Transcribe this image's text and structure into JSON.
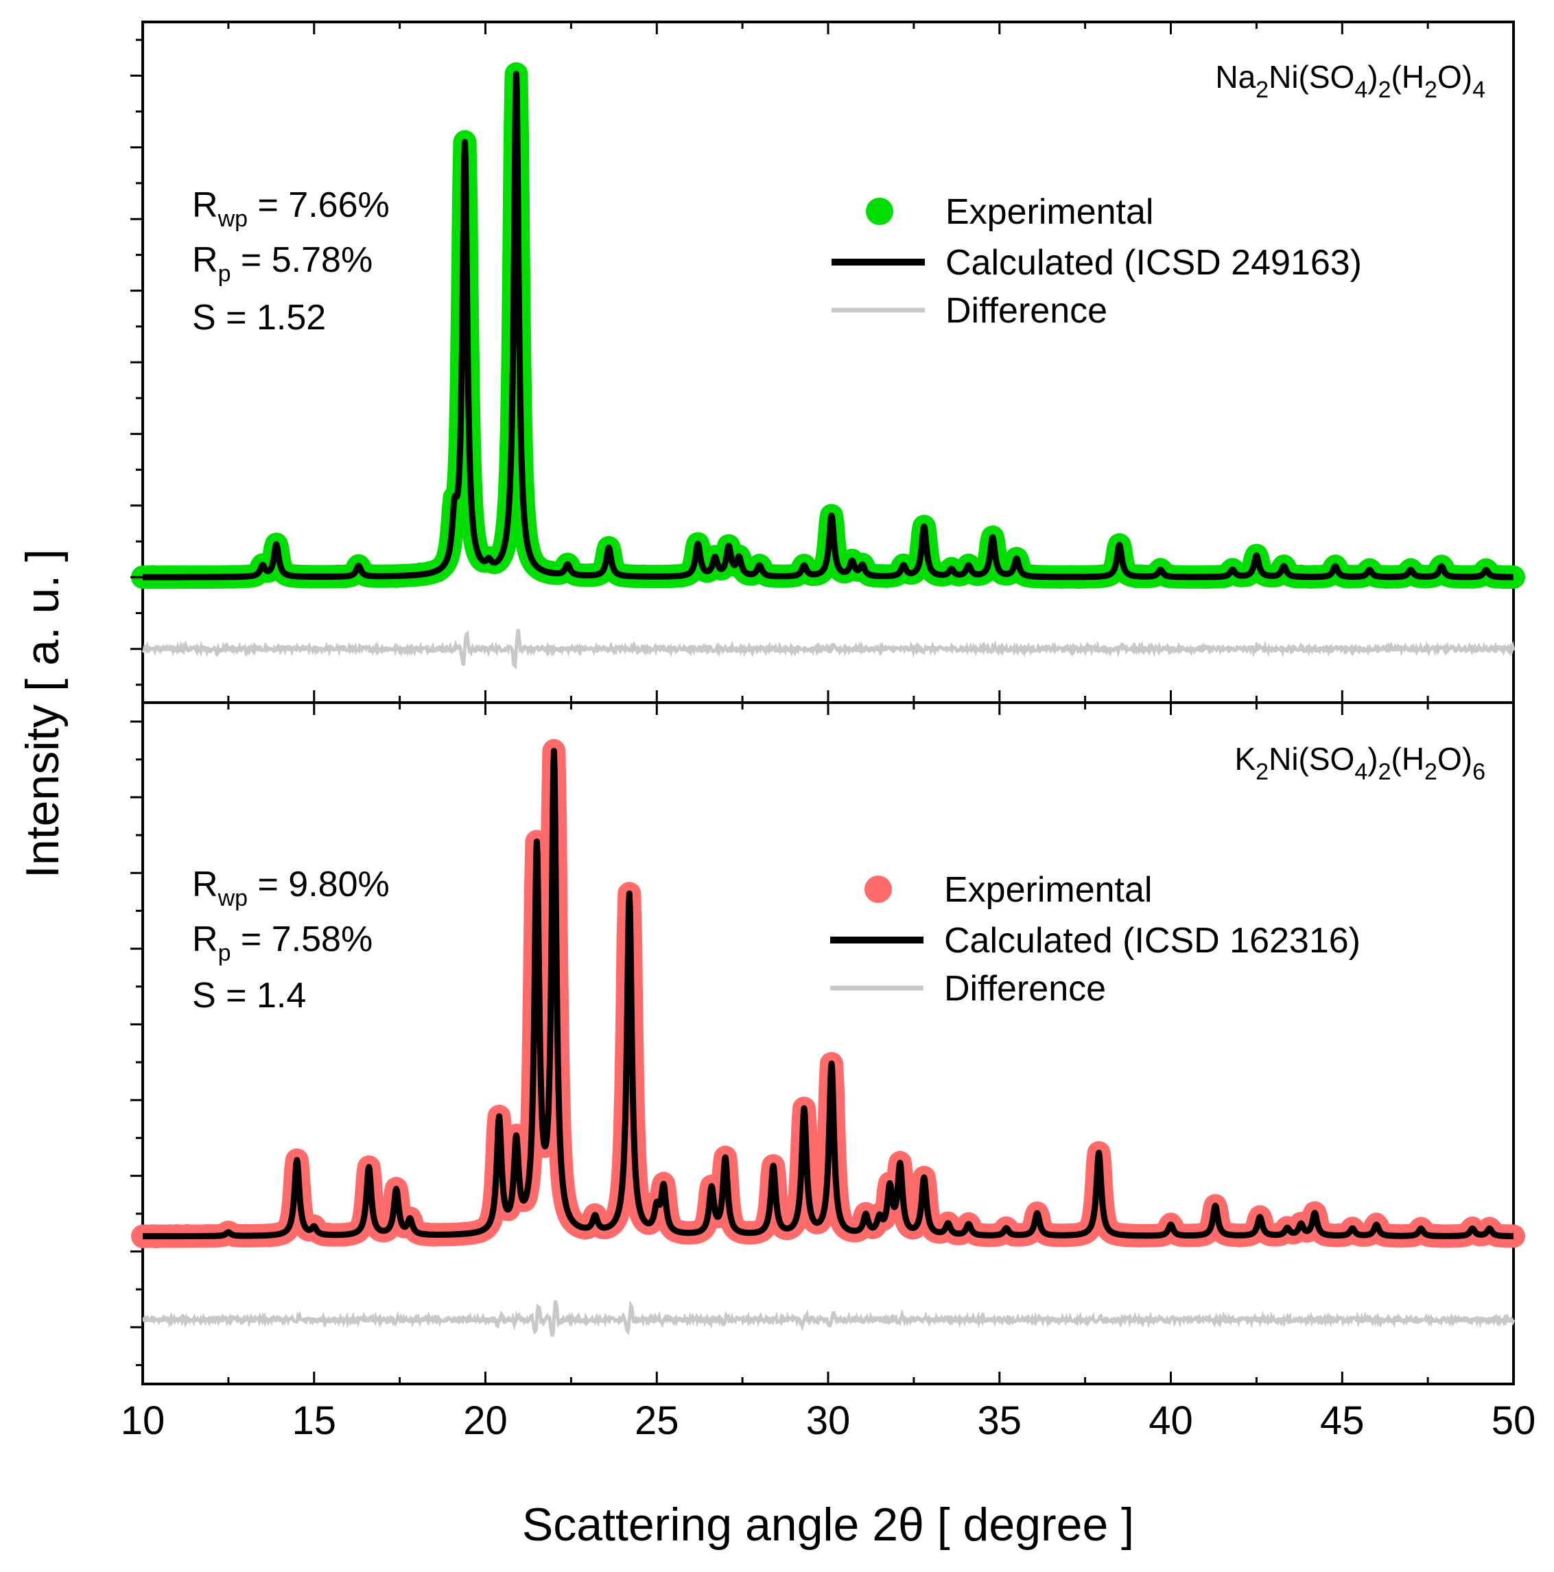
{
  "chart_data": {
    "type": "line",
    "xlabel": "Scattering angle 2θ [ degree ]",
    "ylabel": "Intensity [ a. u. ]",
    "xlim": [
      10,
      50
    ],
    "xticks": [
      "10",
      "15",
      "20",
      "25",
      "30",
      "35",
      "40",
      "45",
      "50"
    ],
    "colors": {
      "experimental_top": "#00dd00",
      "experimental_bottom": "#ff6b6b",
      "calculated": "#000000",
      "difference": "#c8c8c8"
    },
    "panels": [
      {
        "compound": {
          "base": "Na",
          "sub1": "2",
          "mid1": "Ni(SO",
          "sub2": "4",
          "mid2": ")",
          "sub3": "2",
          "mid3": "(H",
          "sub4": "2",
          "mid4": "O)",
          "sub5": "4"
        },
        "stats": {
          "rwp_pre": "R",
          "rwp_sub": "wp",
          "rwp_val": " = 7.66%",
          "rp_pre": "R",
          "rp_sub": "p",
          "rp_val": " =  5.78%",
          "s": "S = 1.52"
        },
        "legend": {
          "experimental": "Experimental",
          "calculated": "Calculated (ICSD 249163)",
          "difference": "Difference"
        },
        "ylim": [
          -0.35,
          1.55
        ],
        "baseline": 0.0,
        "diff_offset": -0.2,
        "peaks": [
          {
            "x": 13.5,
            "h": 0.03
          },
          {
            "x": 13.9,
            "h": 0.09
          },
          {
            "x": 16.3,
            "h": 0.03
          },
          {
            "x": 19.1,
            "h": 0.13
          },
          {
            "x": 19.4,
            "h": 1.2
          },
          {
            "x": 20.1,
            "h": 0.02
          },
          {
            "x": 20.9,
            "h": 1.4
          },
          {
            "x": 22.4,
            "h": 0.03
          },
          {
            "x": 23.6,
            "h": 0.08
          },
          {
            "x": 26.2,
            "h": 0.09
          },
          {
            "x": 26.7,
            "h": 0.05
          },
          {
            "x": 27.1,
            "h": 0.08
          },
          {
            "x": 27.4,
            "h": 0.05
          },
          {
            "x": 28.0,
            "h": 0.03
          },
          {
            "x": 29.3,
            "h": 0.03
          },
          {
            "x": 30.1,
            "h": 0.17
          },
          {
            "x": 30.7,
            "h": 0.04
          },
          {
            "x": 31.0,
            "h": 0.03
          },
          {
            "x": 32.2,
            "h": 0.03
          },
          {
            "x": 32.8,
            "h": 0.14
          },
          {
            "x": 33.6,
            "h": 0.02
          },
          {
            "x": 34.1,
            "h": 0.03
          },
          {
            "x": 34.8,
            "h": 0.11
          },
          {
            "x": 35.5,
            "h": 0.05
          },
          {
            "x": 38.5,
            "h": 0.09
          },
          {
            "x": 39.7,
            "h": 0.02
          },
          {
            "x": 41.8,
            "h": 0.02
          },
          {
            "x": 42.5,
            "h": 0.06
          },
          {
            "x": 43.3,
            "h": 0.03
          },
          {
            "x": 44.8,
            "h": 0.03
          },
          {
            "x": 45.8,
            "h": 0.02
          },
          {
            "x": 47.0,
            "h": 0.02
          },
          {
            "x": 47.9,
            "h": 0.03
          },
          {
            "x": 49.2,
            "h": 0.02
          }
        ]
      },
      {
        "compound": {
          "base": "K",
          "sub1": "2",
          "mid1": "Ni(SO",
          "sub2": "4",
          "mid2": ")",
          "sub3": "2",
          "mid3": "(H",
          "sub4": "2",
          "mid4": "O)",
          "sub5": "6"
        },
        "stats": {
          "rwp_pre": "R",
          "rwp_sub": "wp",
          "rwp_val": " = 9.80%",
          "rp_pre": "R",
          "rp_sub": "p",
          "rp_val": " = 7.58%",
          "s": "S = 1.4"
        },
        "legend": {
          "experimental": "Experimental",
          "calculated": "Calculated (ICSD 162316)",
          "difference": "Difference"
        },
        "ylim": [
          -0.35,
          1.45
        ],
        "baseline": 0.04,
        "diff_offset": -0.18,
        "peaks": [
          {
            "x": 12.5,
            "h": 0.01
          },
          {
            "x": 14.5,
            "h": 0.2
          },
          {
            "x": 15.0,
            "h": 0.02
          },
          {
            "x": 16.6,
            "h": 0.18
          },
          {
            "x": 17.4,
            "h": 0.12
          },
          {
            "x": 17.8,
            "h": 0.04
          },
          {
            "x": 20.4,
            "h": 0.3
          },
          {
            "x": 20.9,
            "h": 0.23
          },
          {
            "x": 21.5,
            "h": 1.0
          },
          {
            "x": 22.0,
            "h": 1.25
          },
          {
            "x": 23.2,
            "h": 0.04
          },
          {
            "x": 24.2,
            "h": 0.9
          },
          {
            "x": 25.0,
            "h": 0.06
          },
          {
            "x": 25.2,
            "h": 0.12
          },
          {
            "x": 26.6,
            "h": 0.12
          },
          {
            "x": 27.0,
            "h": 0.2
          },
          {
            "x": 28.4,
            "h": 0.18
          },
          {
            "x": 29.3,
            "h": 0.33
          },
          {
            "x": 30.1,
            "h": 0.45
          },
          {
            "x": 31.1,
            "h": 0.05
          },
          {
            "x": 31.5,
            "h": 0.04
          },
          {
            "x": 31.8,
            "h": 0.12
          },
          {
            "x": 32.1,
            "h": 0.18
          },
          {
            "x": 32.8,
            "h": 0.15
          },
          {
            "x": 33.5,
            "h": 0.03
          },
          {
            "x": 34.1,
            "h": 0.03
          },
          {
            "x": 35.2,
            "h": 0.02
          },
          {
            "x": 36.1,
            "h": 0.06
          },
          {
            "x": 37.9,
            "h": 0.22
          },
          {
            "x": 40.0,
            "h": 0.03
          },
          {
            "x": 41.3,
            "h": 0.08
          },
          {
            "x": 42.6,
            "h": 0.05
          },
          {
            "x": 43.4,
            "h": 0.02
          },
          {
            "x": 43.8,
            "h": 0.03
          },
          {
            "x": 44.2,
            "h": 0.06
          },
          {
            "x": 45.3,
            "h": 0.02
          },
          {
            "x": 46.0,
            "h": 0.03
          },
          {
            "x": 47.3,
            "h": 0.02
          },
          {
            "x": 48.8,
            "h": 0.02
          },
          {
            "x": 49.3,
            "h": 0.02
          }
        ]
      }
    ]
  }
}
